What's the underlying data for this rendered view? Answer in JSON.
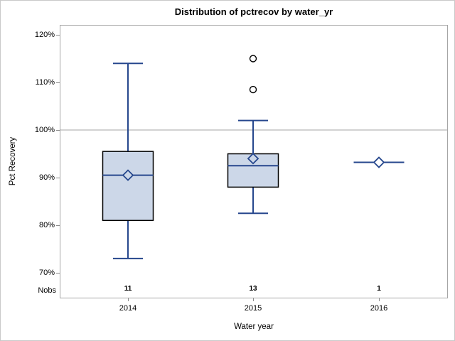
{
  "chart_data": {
    "type": "box",
    "title": "Distribution of pctrecov by water_yr",
    "xlabel": "Water year",
    "ylabel": "Pct Recovery",
    "categories": [
      "2014",
      "2015",
      "2016"
    ],
    "nobs_row_label": "Nobs",
    "nobs": [
      "11",
      "13",
      "1"
    ],
    "ylim": [
      70,
      120
    ],
    "yticks": [
      70,
      80,
      90,
      100,
      110,
      120
    ],
    "ytick_suffix": "%",
    "reference_line_y": 100,
    "grid": "single horizontal reference line at 100%",
    "legend_position": "none",
    "series": [
      {
        "category": "2014",
        "nobs": 11,
        "whisker_low": 73,
        "q1": 81,
        "median": 90.5,
        "mean": 90.5,
        "q3": 95.5,
        "whisker_high": 114,
        "outliers": []
      },
      {
        "category": "2015",
        "nobs": 13,
        "whisker_low": 82.5,
        "q1": 88,
        "median": 92.5,
        "mean": 94,
        "q3": 95,
        "whisker_high": 102,
        "outliers": [
          108.5,
          115
        ]
      },
      {
        "category": "2016",
        "nobs": 1,
        "whisker_low": 93.2,
        "q1": 93.2,
        "median": 93.2,
        "mean": 93.2,
        "q3": 93.2,
        "whisker_high": 93.2,
        "outliers": []
      }
    ],
    "colors": {
      "background": "#ffffff",
      "figure_border": "#c9c9c9",
      "frame": "#a5a5a5",
      "reference_line": "#a5a5a5",
      "tick": "#8c8c8c",
      "text": "#000000",
      "box_fill": "#ccd7e8",
      "box_border": "#000000",
      "whisker_line": "#26478d",
      "median_line": "#26478d",
      "mean_marker": "#26478d",
      "outlier_marker": "#000000"
    }
  }
}
